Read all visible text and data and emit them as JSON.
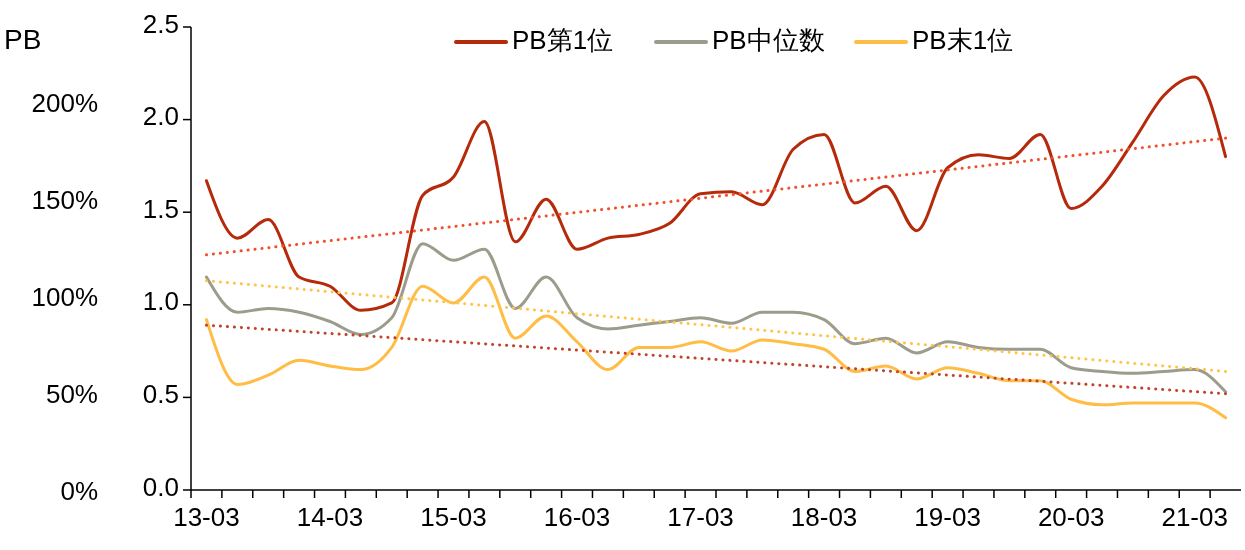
{
  "chart_data": {
    "type": "line",
    "y2label": "PB",
    "legend": "top",
    "categories": [
      "13-03",
      null,
      null,
      null,
      "14-03",
      null,
      null,
      null,
      "15-03",
      null,
      null,
      null,
      "16-03",
      null,
      null,
      null,
      "17-03",
      null,
      null,
      null,
      "18-03",
      null,
      null,
      null,
      "19-03",
      null,
      null,
      null,
      "20-03",
      null,
      null,
      null,
      "21-03",
      null
    ],
    "ylim": [
      0,
      2.5
    ],
    "yticks": [
      {
        "value": 0,
        "label": "0.0"
      },
      0.5,
      {
        "value": 1,
        "label": "1.0"
      },
      1.5,
      {
        "value": 2,
        "label": "2.0"
      },
      2.5
    ],
    "y2lim": [
      0,
      240
    ],
    "y2ticks": [
      {
        "value": 0,
        "label": "0%"
      },
      {
        "value": 50,
        "label": "50%"
      },
      {
        "value": 100,
        "label": "100%"
      },
      {
        "value": 150,
        "label": "150%"
      },
      {
        "value": 200,
        "label": "200%"
      }
    ],
    "series": [
      {
        "name": "PB第1位",
        "color": "#b52a0a",
        "values": [
          1.67,
          1.36,
          1.46,
          1.15,
          1.1,
          0.97,
          1.01,
          1.59,
          1.69,
          1.99,
          1.34,
          1.57,
          1.3,
          1.36,
          1.38,
          1.44,
          1.6,
          1.61,
          1.54,
          1.84,
          1.92,
          1.55,
          1.64,
          1.4,
          1.74,
          1.81,
          1.79,
          1.92,
          1.52,
          1.64,
          1.88,
          2.13,
          2.23,
          1.8
        ]
      },
      {
        "name": "PB中位数",
        "color": "#9c9c8c",
        "values": [
          1.15,
          0.96,
          0.98,
          0.96,
          0.91,
          0.84,
          0.93,
          1.33,
          1.24,
          1.3,
          0.98,
          1.15,
          0.93,
          0.87,
          0.89,
          0.91,
          0.93,
          0.9,
          0.96,
          0.96,
          0.92,
          0.79,
          0.82,
          0.74,
          0.8,
          0.77,
          0.76,
          0.76,
          0.66,
          0.64,
          0.63,
          0.64,
          0.65,
          0.53
        ]
      },
      {
        "name": "PB末1位",
        "color": "#ffbd45",
        "values": [
          0.92,
          0.57,
          0.62,
          0.7,
          0.67,
          0.65,
          0.77,
          1.1,
          1.01,
          1.15,
          0.82,
          0.94,
          0.8,
          0.65,
          0.77,
          0.77,
          0.8,
          0.75,
          0.81,
          0.79,
          0.76,
          0.64,
          0.67,
          0.6,
          0.66,
          0.63,
          0.59,
          0.59,
          0.49,
          0.46,
          0.47,
          0.47,
          0.47,
          0.39
        ]
      },
      {
        "type": "line",
        "line_style": "dotted",
        "color": "#f0502a",
        "values": [
          1.27,
          null,
          null,
          null,
          null,
          null,
          null,
          null,
          null,
          null,
          null,
          null,
          null,
          null,
          null,
          null,
          null,
          null,
          null,
          null,
          null,
          null,
          null,
          null,
          null,
          null,
          null,
          null,
          null,
          null,
          null,
          null,
          null,
          1.9
        ]
      },
      {
        "type": "line",
        "line_style": "dotted",
        "color": "#ffc44a",
        "values": [
          1.13,
          null,
          null,
          null,
          null,
          null,
          null,
          null,
          null,
          null,
          null,
          null,
          null,
          null,
          null,
          null,
          null,
          null,
          null,
          null,
          null,
          null,
          null,
          null,
          null,
          null,
          null,
          null,
          null,
          null,
          null,
          null,
          null,
          0.64
        ]
      },
      {
        "type": "line",
        "line_style": "dotted",
        "color": "#c0442c",
        "values": [
          0.89,
          null,
          null,
          null,
          null,
          null,
          null,
          null,
          null,
          null,
          null,
          null,
          null,
          null,
          null,
          null,
          null,
          null,
          null,
          null,
          null,
          null,
          null,
          null,
          null,
          null,
          null,
          null,
          null,
          null,
          null,
          null,
          null,
          0.52
        ]
      }
    ]
  }
}
